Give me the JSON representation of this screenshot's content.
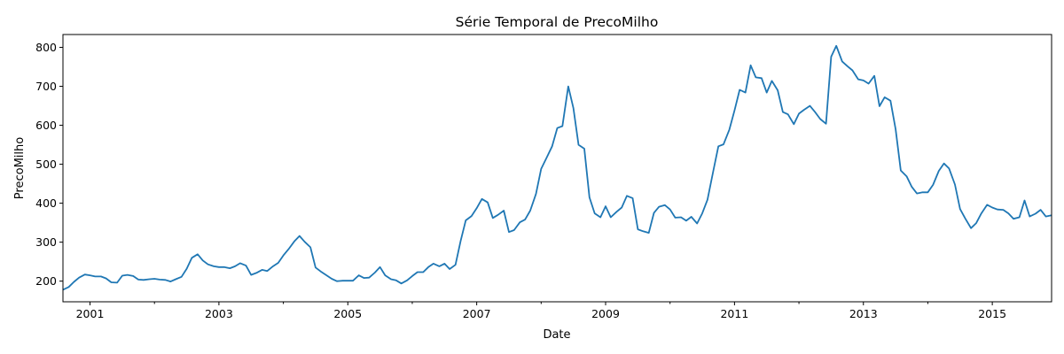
{
  "chart_data": {
    "type": "line",
    "title": "Série Temporal de PrecoMilho",
    "xlabel": "Date",
    "ylabel": "PrecoMilho",
    "x_tick_labels": [
      "2001",
      "2003",
      "2005",
      "2007",
      "2009",
      "2011",
      "2013",
      "2015"
    ],
    "x_tick_values": [
      2001,
      2003,
      2005,
      2007,
      2009,
      2011,
      2013,
      2015
    ],
    "y_tick_values": [
      200,
      300,
      400,
      500,
      600,
      700,
      800
    ],
    "xlim": [
      2000.58,
      2015.92
    ],
    "ylim": [
      147,
      833
    ],
    "grid": false,
    "line_color": "#1f77b4",
    "series": [
      {
        "x": [
          2000.58,
          2000.67,
          2000.75,
          2000.83,
          2000.92,
          2001.0,
          2001.08,
          2001.17,
          2001.25,
          2001.33,
          2001.42,
          2001.5,
          2001.58,
          2001.67,
          2001.75,
          2001.83,
          2001.92,
          2002.0,
          2002.08,
          2002.17,
          2002.25,
          2002.33,
          2002.42,
          2002.5,
          2002.58,
          2002.67,
          2002.75,
          2002.83,
          2002.92,
          2003.0,
          2003.08,
          2003.17,
          2003.25,
          2003.33,
          2003.42,
          2003.5,
          2003.58,
          2003.67,
          2003.75,
          2003.83,
          2003.92,
          2004.0,
          2004.08,
          2004.17,
          2004.25,
          2004.33,
          2004.42,
          2004.5,
          2004.58,
          2004.67,
          2004.75,
          2004.83,
          2004.92,
          2005.0,
          2005.08,
          2005.17,
          2005.25,
          2005.33,
          2005.42,
          2005.5,
          2005.58,
          2005.67,
          2005.75,
          2005.83,
          2005.92,
          2006.0,
          2006.08,
          2006.17,
          2006.25,
          2006.33,
          2006.42,
          2006.5,
          2006.58,
          2006.67,
          2006.75,
          2006.83,
          2006.92,
          2007.0,
          2007.08,
          2007.17,
          2007.25,
          2007.33,
          2007.42,
          2007.5,
          2007.58,
          2007.67,
          2007.75,
          2007.83,
          2007.92,
          2008.0,
          2008.08,
          2008.17,
          2008.25,
          2008.33,
          2008.42,
          2008.5,
          2008.58,
          2008.67,
          2008.75,
          2008.83,
          2008.92,
          2009.0,
          2009.08,
          2009.17,
          2009.25,
          2009.33,
          2009.42,
          2009.5,
          2009.58,
          2009.67,
          2009.75,
          2009.83,
          2009.92,
          2010.0,
          2010.08,
          2010.17,
          2010.25,
          2010.33,
          2010.42,
          2010.5,
          2010.58,
          2010.67,
          2010.75,
          2010.83,
          2010.92,
          2011.0,
          2011.08,
          2011.17,
          2011.25,
          2011.33,
          2011.42,
          2011.5,
          2011.58,
          2011.67,
          2011.75,
          2011.83,
          2011.92,
          2012.0,
          2012.08,
          2012.17,
          2012.25,
          2012.33,
          2012.42,
          2012.5,
          2012.58,
          2012.67,
          2012.75,
          2012.83,
          2012.92,
          2013.0,
          2013.08,
          2013.17,
          2013.25,
          2013.33,
          2013.42,
          2013.5,
          2013.58,
          2013.67,
          2013.75,
          2013.83,
          2013.92,
          2014.0,
          2014.08,
          2014.17,
          2014.25,
          2014.33,
          2014.42,
          2014.5,
          2014.58,
          2014.67,
          2014.75,
          2014.83,
          2014.92,
          2015.0,
          2015.08,
          2015.17,
          2015.25,
          2015.33,
          2015.42,
          2015.5,
          2015.58,
          2015.67,
          2015.75,
          2015.83,
          2015.92
        ],
        "values": [
          178,
          185,
          198,
          209,
          217,
          215,
          212,
          212,
          207,
          197,
          196,
          214,
          216,
          213,
          204,
          203,
          205,
          206,
          204,
          203,
          199,
          205,
          211,
          232,
          260,
          269,
          253,
          243,
          238,
          236,
          236,
          233,
          238,
          246,
          240,
          216,
          221,
          229,
          226,
          237,
          247,
          266,
          282,
          302,
          316,
          301,
          287,
          235,
          225,
          215,
          206,
          200,
          201,
          201,
          201,
          215,
          208,
          209,
          222,
          236,
          215,
          205,
          202,
          194,
          202,
          213,
          223,
          223,
          236,
          245,
          238,
          245,
          231,
          242,
          303,
          356,
          367,
          387,
          411,
          402,
          362,
          370,
          381,
          326,
          331,
          351,
          358,
          381,
          424,
          488,
          515,
          546,
          593,
          598,
          700,
          644,
          550,
          540,
          415,
          374,
          364,
          392,
          364,
          378,
          389,
          419,
          413,
          333,
          328,
          324,
          375,
          391,
          395,
          384,
          363,
          364,
          355,
          365,
          348,
          374,
          409,
          482,
          546,
          551,
          589,
          638,
          691,
          684,
          754,
          723,
          721,
          684,
          714,
          690,
          634,
          628,
          603,
          630,
          640,
          650,
          634,
          616,
          604,
          776,
          804,
          764,
          752,
          741,
          718,
          715,
          707,
          727,
          649,
          672,
          663,
          590,
          484,
          469,
          442,
          425,
          428,
          428,
          447,
          483,
          502,
          489,
          448,
          385,
          361,
          336,
          349,
          374,
          396,
          389,
          384,
          383,
          374,
          360,
          364,
          407,
          366,
          373,
          383,
          366,
          369
        ]
      }
    ]
  }
}
